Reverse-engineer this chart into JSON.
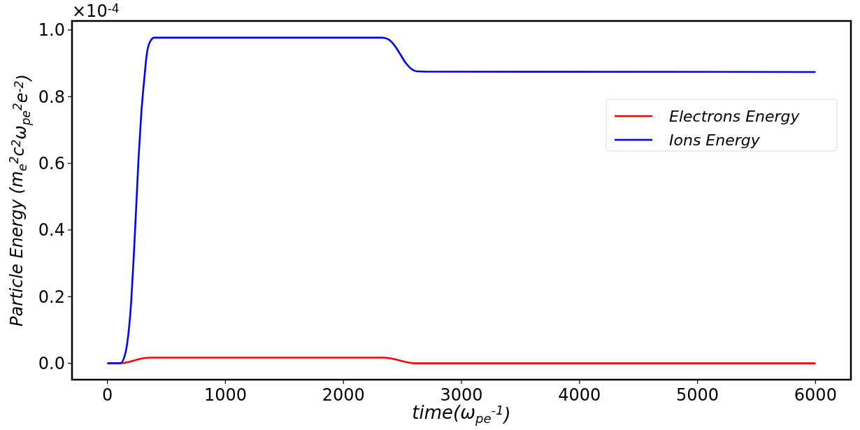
{
  "chart_data": {
    "type": "line",
    "xlabel": "time(ω$_{pe}$$^{-1}$)",
    "ylabel": "Particle Energy (m$_{e}$$^{2}$c$^{2}$ω$_{pe}$$^{2}$e$^{-2}$)",
    "annotations": [
      "×10$^{-4}$"
    ],
    "xlim": [
      -300,
      6300
    ],
    "xticks": [
      0,
      1000,
      2000,
      3000,
      4000,
      5000,
      6000
    ],
    "ylim": [
      -0.049,
      1.027
    ],
    "yticks": [
      {
        "value": 0,
        "label": "0.0"
      },
      {
        "value": 0.2,
        "label": "0.2"
      },
      {
        "value": 0.4,
        "label": "0.4"
      },
      {
        "value": 0.6,
        "label": "0.6"
      },
      {
        "value": 0.8,
        "label": "0.8"
      },
      {
        "value": 1,
        "label": "1.0"
      }
    ],
    "grid": false,
    "legend": "right",
    "line_style": "solid",
    "series": [
      {
        "name": "Electrons Energy",
        "color": "#ff0000",
        "x": [
          0,
          110,
          180,
          250,
          320,
          360,
          2330,
          2400,
          2470,
          2540,
          2600,
          6000
        ],
        "values": [
          0,
          0,
          0.004,
          0.011,
          0.016,
          0.017,
          0.017,
          0.015,
          0.009,
          0.003,
          0,
          0
        ]
      },
      {
        "name": "Ions Energy",
        "color": "#0000ff",
        "x": [
          0,
          109,
          143,
          168,
          202,
          224,
          244,
          263,
          287,
          313,
          333,
          356,
          396,
          2330,
          2380,
          2430,
          2480,
          2530,
          2580,
          2620,
          2700,
          6000
        ],
        "values": [
          0,
          0,
          0.019,
          0.061,
          0.188,
          0.328,
          0.469,
          0.61,
          0.75,
          0.856,
          0.926,
          0.961,
          0.977,
          0.977,
          0.972,
          0.955,
          0.928,
          0.9,
          0.882,
          0.876,
          0.875,
          0.874
        ]
      }
    ]
  }
}
